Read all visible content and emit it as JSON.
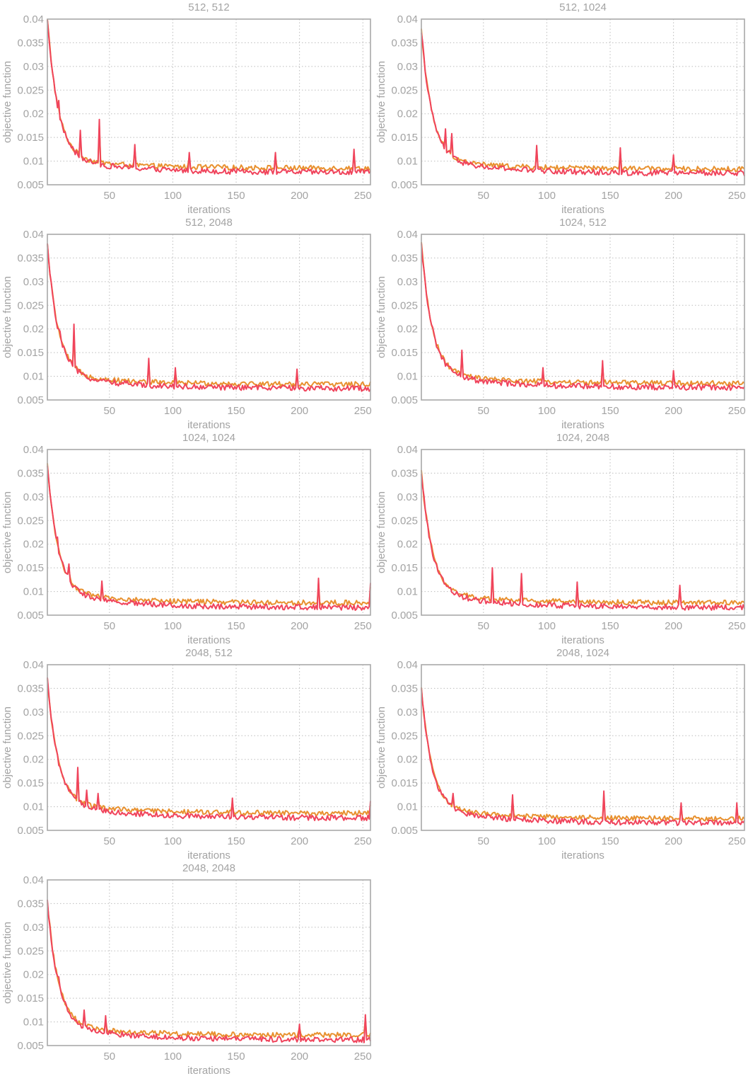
{
  "colors": {
    "series_a": "#e8912f",
    "series_b": "#f0445c",
    "axis": "#a8a8a8",
    "text": "#a3a3a3"
  },
  "chart_data": [
    {
      "type": "line",
      "title": "512, 512",
      "xlabel": "iterations",
      "ylabel": "objective function",
      "xlim": [
        1,
        256
      ],
      "ylim": [
        0.005,
        0.04
      ],
      "xticks": [
        "50",
        "100",
        "150",
        "200",
        "250"
      ],
      "yticks": [
        "0.005",
        "0.01",
        "0.015",
        "0.02",
        "0.025",
        "0.03",
        "0.035",
        "0.04"
      ],
      "start": 0.038,
      "end_a": 0.0085,
      "end_b": 0.0076,
      "spikes": [
        [
          10,
          0.0228
        ],
        [
          27,
          0.0165
        ],
        [
          42,
          0.0188
        ],
        [
          70,
          0.0135
        ],
        [
          113,
          0.0118
        ],
        [
          181,
          0.0118
        ],
        [
          243,
          0.0125
        ]
      ]
    },
    {
      "type": "line",
      "title": "512, 1024",
      "xlabel": "iterations",
      "ylabel": "objective function",
      "xlim": [
        1,
        256
      ],
      "ylim": [
        0.005,
        0.04
      ],
      "xticks": [
        "50",
        "100",
        "150",
        "200",
        "250"
      ],
      "yticks": [
        "0.005",
        "0.01",
        "0.015",
        "0.02",
        "0.025",
        "0.03",
        "0.035",
        "0.04"
      ],
      "start": 0.0355,
      "end_a": 0.0083,
      "end_b": 0.0074,
      "spikes": [
        [
          20,
          0.0168
        ],
        [
          25,
          0.0158
        ],
        [
          92,
          0.0133
        ],
        [
          158,
          0.0128
        ],
        [
          200,
          0.0113
        ]
      ]
    },
    {
      "type": "line",
      "title": "512, 2048",
      "xlabel": "iterations",
      "ylabel": "objective function",
      "xlim": [
        1,
        256
      ],
      "ylim": [
        0.005,
        0.04
      ],
      "xticks": [
        "50",
        "100",
        "150",
        "200",
        "250"
      ],
      "yticks": [
        "0.005",
        "0.01",
        "0.015",
        "0.02",
        "0.025",
        "0.03",
        "0.035",
        "0.04"
      ],
      "start": 0.0355,
      "end_a": 0.0083,
      "end_b": 0.0074,
      "spikes": [
        [
          11,
          0.0195
        ],
        [
          22,
          0.021
        ],
        [
          81,
          0.0138
        ],
        [
          102,
          0.0118
        ],
        [
          198,
          0.0115
        ]
      ]
    },
    {
      "type": "line",
      "title": "1024, 512",
      "xlabel": "iterations",
      "ylabel": "objective function",
      "xlim": [
        1,
        256
      ],
      "ylim": [
        0.005,
        0.04
      ],
      "xticks": [
        "50",
        "100",
        "150",
        "200",
        "250"
      ],
      "yticks": [
        "0.005",
        "0.01",
        "0.015",
        "0.02",
        "0.025",
        "0.03",
        "0.035",
        "0.04"
      ],
      "start": 0.0358,
      "end_a": 0.0085,
      "end_b": 0.0076,
      "spikes": [
        [
          33,
          0.0155
        ],
        [
          97,
          0.0118
        ],
        [
          144,
          0.0133
        ],
        [
          200,
          0.0112
        ]
      ]
    },
    {
      "type": "line",
      "title": "1024, 1024",
      "xlabel": "iterations",
      "ylabel": "objective function",
      "xlim": [
        1,
        256
      ],
      "ylim": [
        0.005,
        0.04
      ],
      "xticks": [
        "50",
        "100",
        "150",
        "200",
        "250"
      ],
      "yticks": [
        "0.005",
        "0.01",
        "0.015",
        "0.02",
        "0.025",
        "0.03",
        "0.035",
        "0.04"
      ],
      "start": 0.0345,
      "end_a": 0.0076,
      "end_b": 0.0066,
      "spikes": [
        [
          9,
          0.0215
        ],
        [
          18,
          0.0158
        ],
        [
          44,
          0.0122
        ],
        [
          215,
          0.0128
        ],
        [
          256,
          0.0118
        ]
      ]
    },
    {
      "type": "line",
      "title": "1024, 2048",
      "xlabel": "iterations",
      "ylabel": "objective function",
      "xlim": [
        1,
        256
      ],
      "ylim": [
        0.005,
        0.04
      ],
      "xticks": [
        "50",
        "100",
        "150",
        "200",
        "250"
      ],
      "yticks": [
        "0.005",
        "0.01",
        "0.015",
        "0.02",
        "0.025",
        "0.03",
        "0.035",
        "0.04"
      ],
      "start": 0.033,
      "end_a": 0.0076,
      "end_b": 0.0066,
      "spikes": [
        [
          7,
          0.0195
        ],
        [
          57,
          0.015
        ],
        [
          80,
          0.0138
        ],
        [
          124,
          0.012
        ],
        [
          205,
          0.0113
        ]
      ]
    },
    {
      "type": "line",
      "title": "2048, 512",
      "xlabel": "iterations",
      "ylabel": "objective function",
      "xlim": [
        1,
        256
      ],
      "ylim": [
        0.005,
        0.04
      ],
      "xticks": [
        "50",
        "100",
        "150",
        "200",
        "250"
      ],
      "yticks": [
        "0.005",
        "0.01",
        "0.015",
        "0.02",
        "0.025",
        "0.03",
        "0.035",
        "0.04"
      ],
      "start": 0.0345,
      "end_a": 0.0086,
      "end_b": 0.0076,
      "spikes": [
        [
          25,
          0.0183
        ],
        [
          32,
          0.0135
        ],
        [
          41,
          0.0128
        ],
        [
          147,
          0.0118
        ],
        [
          256,
          0.0112
        ]
      ]
    },
    {
      "type": "line",
      "title": "2048, 1024",
      "xlabel": "iterations",
      "ylabel": "objective function",
      "xlim": [
        1,
        256
      ],
      "ylim": [
        0.005,
        0.04
      ],
      "xticks": [
        "50",
        "100",
        "150",
        "200",
        "250"
      ],
      "yticks": [
        "0.005",
        "0.01",
        "0.015",
        "0.02",
        "0.025",
        "0.03",
        "0.035",
        "0.04"
      ],
      "start": 0.0325,
      "end_a": 0.0075,
      "end_b": 0.0065,
      "spikes": [
        [
          26,
          0.0128
        ],
        [
          73,
          0.0125
        ],
        [
          145,
          0.0133
        ],
        [
          206,
          0.0108
        ],
        [
          250,
          0.0108
        ]
      ]
    },
    {
      "type": "line",
      "title": "2048, 2048",
      "xlabel": "iterations",
      "ylabel": "objective function",
      "xlim": [
        1,
        256
      ],
      "ylim": [
        0.005,
        0.04
      ],
      "xticks": [
        "50",
        "100",
        "150",
        "200",
        "250"
      ],
      "yticks": [
        "0.005",
        "0.01",
        "0.015",
        "0.02",
        "0.025",
        "0.03",
        "0.035",
        "0.04"
      ],
      "start": 0.0335,
      "end_a": 0.0072,
      "end_b": 0.0062,
      "spikes": [
        [
          10,
          0.0195
        ],
        [
          30,
          0.0125
        ],
        [
          47,
          0.0113
        ],
        [
          200,
          0.0095
        ],
        [
          252,
          0.0115
        ]
      ]
    }
  ]
}
